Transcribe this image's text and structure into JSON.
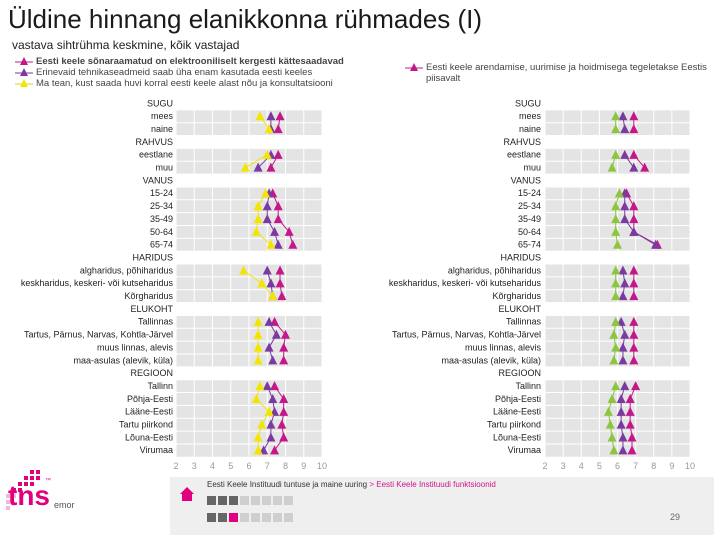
{
  "title": "Üldine hinnang elanikkonna rühmades (I)",
  "subtitle": "vastava sihtrühma keskmine, kõik vastajad",
  "colors": {
    "dark_purple": "#8b1a7e",
    "purple": "#7a3aa0",
    "magenta": "#c2188a",
    "green": "#8cc63f",
    "yellow": "#f2e600",
    "grid": "#cccccc",
    "band": "#e6e6e6"
  },
  "legend": {
    "left": [
      {
        "label": "Eesti keele sõnaraamatud on elektrooniliselt kergesti kättesaadavad",
        "color": "#c2188a",
        "icon": "triangle-line"
      },
      {
        "label": "Erinevaid tehnikaseadmeid saab üha enam kasutada eesti keeles",
        "color": "#7a3aa0",
        "icon": "triangle-line"
      },
      {
        "label": "Ma tean, kust saada huvi korral eesti keele alast nõu ja konsultatsiooni",
        "color": "#f2e600",
        "icon": "triangle-line"
      }
    ],
    "right": {
      "label": "Eesti keele arendamise, uurimise ja hoidmisega tegeletakse Eestis piisavalt",
      "color": "#c2188a",
      "icon": "triangle-line"
    }
  },
  "row_labels": [
    "SUGU",
    "mees",
    "naine",
    "RAHVUS",
    "eestlane",
    "muu",
    "VANUS",
    "15-24",
    "25-34",
    "35-49",
    "50-64",
    "65-74",
    "HARIDUS",
    "algharidus, põhiharidus",
    "keskharidus, keskeri- või kutseharidus",
    "Kõrgharidus",
    "ELUKOHT",
    "Tallinnas",
    "Tartus, Pärnus, Narvas, Kohtla-Järvel",
    "muus linnas, alevis",
    "maa-asulas (alevik, küla)",
    "REGIOON",
    "Tallinn",
    "Põhja-Eesti",
    "Lääne-Eesti",
    "Tartu piirkond",
    "Lõuna-Eesti",
    "Virumaa"
  ],
  "chart_data": [
    {
      "type": "scatter",
      "title": "",
      "xlim": [
        2,
        10
      ],
      "x_ticks": [
        "2",
        "3",
        "4",
        "5",
        "6",
        "7",
        "8",
        "9",
        "10"
      ],
      "categories": [
        "SUGU",
        "mees",
        "naine",
        "RAHVUS",
        "eestlane",
        "muu",
        "VANUS",
        "15-24",
        "25-34",
        "35-49",
        "50-64",
        "65-74",
        "HARIDUS",
        "algharidus, põhiharidus",
        "keskharidus, keskeri- või kutseharidus",
        "Kõrgharidus",
        "ELUKOHT",
        "Tallinnas",
        "Tartus, Pärnus, Narvas, Kohtla-Järvel",
        "muus linnas, alevis",
        "maa-asulas (alevik, küla)",
        "REGIOON",
        "Tallinn",
        "Põhja-Eesti",
        "Lääne-Eesti",
        "Tartu piirkond",
        "Lõuna-Eesti",
        "Virumaa"
      ],
      "series": [
        {
          "color": "#c2188a",
          "values": [
            null,
            7.7,
            7.6,
            null,
            7.6,
            7.2,
            null,
            7.3,
            7.6,
            7.6,
            8.2,
            8.4,
            null,
            7.7,
            7.7,
            7.8,
            null,
            7.4,
            8.0,
            7.9,
            7.9,
            null,
            7.4,
            7.9,
            7.9,
            7.8,
            7.9,
            7.4
          ]
        },
        {
          "color": "#7a3aa0",
          "values": [
            null,
            7.2,
            7.2,
            null,
            7.2,
            6.5,
            null,
            7.1,
            7.0,
            7.0,
            7.4,
            7.6,
            null,
            7.0,
            7.2,
            7.3,
            null,
            7.1,
            7.5,
            7.1,
            7.3,
            null,
            7.0,
            7.3,
            7.4,
            7.2,
            7.2,
            6.8
          ]
        },
        {
          "color": "#f2e600",
          "values": [
            null,
            6.6,
            7.1,
            null,
            7.0,
            5.8,
            null,
            6.9,
            6.5,
            6.5,
            6.4,
            7.2,
            null,
            5.7,
            6.7,
            7.3,
            null,
            6.5,
            6.5,
            6.5,
            6.5,
            null,
            6.6,
            6.4,
            7.1,
            6.7,
            6.5,
            6.5
          ]
        }
      ]
    },
    {
      "type": "scatter",
      "title": "",
      "xlim": [
        2,
        10
      ],
      "x_ticks": [
        "2",
        "3",
        "4",
        "5",
        "6",
        "7",
        "8",
        "9",
        "10"
      ],
      "categories": [
        "SUGU",
        "mees",
        "naine",
        "RAHVUS",
        "eestlane",
        "muu",
        "VANUS",
        "15-24",
        "25-34",
        "35-49",
        "50-64",
        "65-74",
        "HARIDUS",
        "algharidus, põhiharidus",
        "keskharidus, keskeri- või kutseharidus",
        "Kõrgharidus",
        "ELUKOHT",
        "Tallinnas",
        "Tartus, Pärnus, Narvas, Kohtla-Järvel",
        "muus linnas, alevis",
        "maa-asulas (alevik, küla)",
        "REGIOON",
        "Tallinn",
        "Põhja-Eesti",
        "Lääne-Eesti",
        "Tartu piirkond",
        "Lõuna-Eesti",
        "Virumaa"
      ],
      "series": [
        {
          "color": "#c2188a",
          "values": [
            null,
            6.9,
            6.9,
            null,
            6.9,
            7.5,
            null,
            6.5,
            6.9,
            6.9,
            6.9,
            8.2,
            null,
            6.9,
            6.9,
            6.9,
            null,
            6.9,
            6.9,
            6.9,
            6.9,
            null,
            7.0,
            6.7,
            6.7,
            6.7,
            6.8,
            6.8
          ]
        },
        {
          "color": "#7a3aa0",
          "values": [
            null,
            6.3,
            6.4,
            null,
            6.4,
            6.9,
            null,
            6.4,
            6.4,
            6.4,
            6.9,
            8.1,
            null,
            6.3,
            6.4,
            6.3,
            null,
            6.2,
            6.4,
            6.3,
            6.3,
            null,
            6.4,
            6.2,
            6.2,
            6.2,
            6.3,
            6.3
          ]
        },
        {
          "color": "#8cc63f",
          "values": [
            null,
            5.9,
            5.9,
            null,
            5.9,
            5.7,
            null,
            6.1,
            5.9,
            5.9,
            5.9,
            6.0,
            null,
            5.9,
            5.9,
            5.9,
            null,
            5.9,
            5.8,
            5.9,
            5.8,
            null,
            5.9,
            5.7,
            5.5,
            5.6,
            5.7,
            5.8
          ]
        }
      ]
    }
  ],
  "footer": {
    "text": "Eesti Keele Instituudi tuntuse ja maine uuring",
    "arrow": ">",
    "link": "Eesti Keele Instituudi funktsioonid",
    "page_number": "29"
  },
  "logo": {
    "main": "tns",
    "sub": "emor",
    "tm": "™"
  }
}
